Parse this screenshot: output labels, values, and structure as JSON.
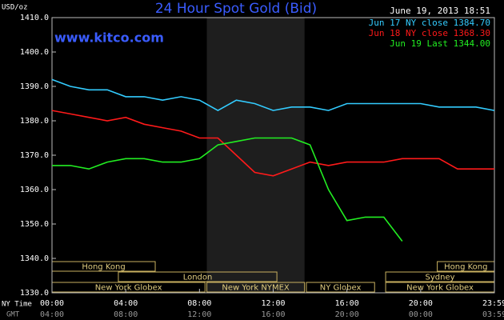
{
  "chart_data": {
    "type": "line",
    "title": "24 Hour Spot Gold (Bid)",
    "website": "www.kitco.com",
    "timestamp": "June 19, 2013 18:51",
    "ylabel": "USD/oz",
    "x_row_label": "NY Time",
    "gmt_row_label": "GMT",
    "x": [
      0,
      1,
      2,
      3,
      4,
      5,
      6,
      7,
      8,
      9,
      10,
      11,
      12,
      13,
      14,
      15,
      16,
      17,
      18,
      19,
      20,
      21,
      22,
      23,
      24
    ],
    "series": [
      {
        "name": "Jun 17 NY close 1384.70",
        "color": "#33ccff",
        "values": [
          1392,
          1390,
          1389,
          1389,
          1387,
          1387,
          1386,
          1387,
          1386,
          1383,
          1386,
          1385,
          1383,
          1384,
          1384,
          1383,
          1385,
          1385,
          1385,
          1385,
          1385,
          1384,
          1384,
          1384,
          1383
        ]
      },
      {
        "name": "Jun 18 NY close 1368.30",
        "color": "#ff1a1a",
        "values": [
          1383,
          1382,
          1381,
          1380,
          1381,
          1379,
          1378,
          1377,
          1375,
          1375,
          1370,
          1365,
          1364,
          1366,
          1368,
          1367,
          1368,
          1368,
          1368,
          1369,
          1369,
          1369,
          1366,
          1366,
          1366
        ]
      },
      {
        "name": "Jun 19 Last 1344.00",
        "color": "#22ee22",
        "values": [
          1367,
          1367,
          1366,
          1368,
          1369,
          1369,
          1368,
          1368,
          1369,
          1373,
          1374,
          1375,
          1375,
          1375,
          1373,
          1360,
          1351,
          1352,
          1352,
          1345,
          null,
          null,
          null,
          null,
          null
        ]
      }
    ],
    "xlim": [
      0,
      24
    ],
    "xticks": [
      {
        "value": 0,
        "label": "00:00"
      },
      {
        "value": 4,
        "label": "04:00"
      },
      {
        "value": 8,
        "label": "08:00"
      },
      {
        "value": 12,
        "label": "12:00"
      },
      {
        "value": 16,
        "label": "16:00"
      },
      {
        "value": 20,
        "label": "20:00"
      },
      {
        "value": 24,
        "label": "23:59"
      }
    ],
    "gmt_labels": [
      "04:00",
      "08:00",
      "12:00",
      "16:00",
      "20:00",
      "00:00",
      "03:59"
    ],
    "ylim": [
      1330,
      1410
    ],
    "yticks": [
      {
        "value": 1330,
        "label": "1330.0"
      },
      {
        "value": 1340,
        "label": "1340.0"
      },
      {
        "value": 1350,
        "label": "1350.0"
      },
      {
        "value": 1360,
        "label": "1360.0"
      },
      {
        "value": 1370,
        "label": "1370.0"
      },
      {
        "value": 1380,
        "label": "1380.0"
      },
      {
        "value": 1390,
        "label": "1390.0"
      },
      {
        "value": 1400,
        "label": "1400.0"
      },
      {
        "value": 1410,
        "label": "1410.0"
      }
    ],
    "grid": false,
    "shaded_region": [
      8.4,
      13.7
    ],
    "sessions": [
      {
        "label": "Hong Kong",
        "start": 0,
        "end": 5.6,
        "row": 0
      },
      {
        "label": "Hong Kong",
        "start": 20.9,
        "end": 24,
        "row": 0
      },
      {
        "label": "London",
        "start": 3.6,
        "end": 12.2,
        "row": 1
      },
      {
        "label": "Sydney",
        "start": 18.1,
        "end": 24,
        "row": 1
      },
      {
        "label": "New York Globex",
        "start": 0,
        "end": 8.3,
        "row": 2
      },
      {
        "label": "New York NYMEX",
        "start": 8.4,
        "end": 13.7,
        "row": 2
      },
      {
        "label": "NY Globex",
        "start": 13.8,
        "end": 17.5,
        "row": 2
      },
      {
        "label": "New York Globex",
        "start": 18.1,
        "end": 24,
        "row": 2
      }
    ]
  }
}
